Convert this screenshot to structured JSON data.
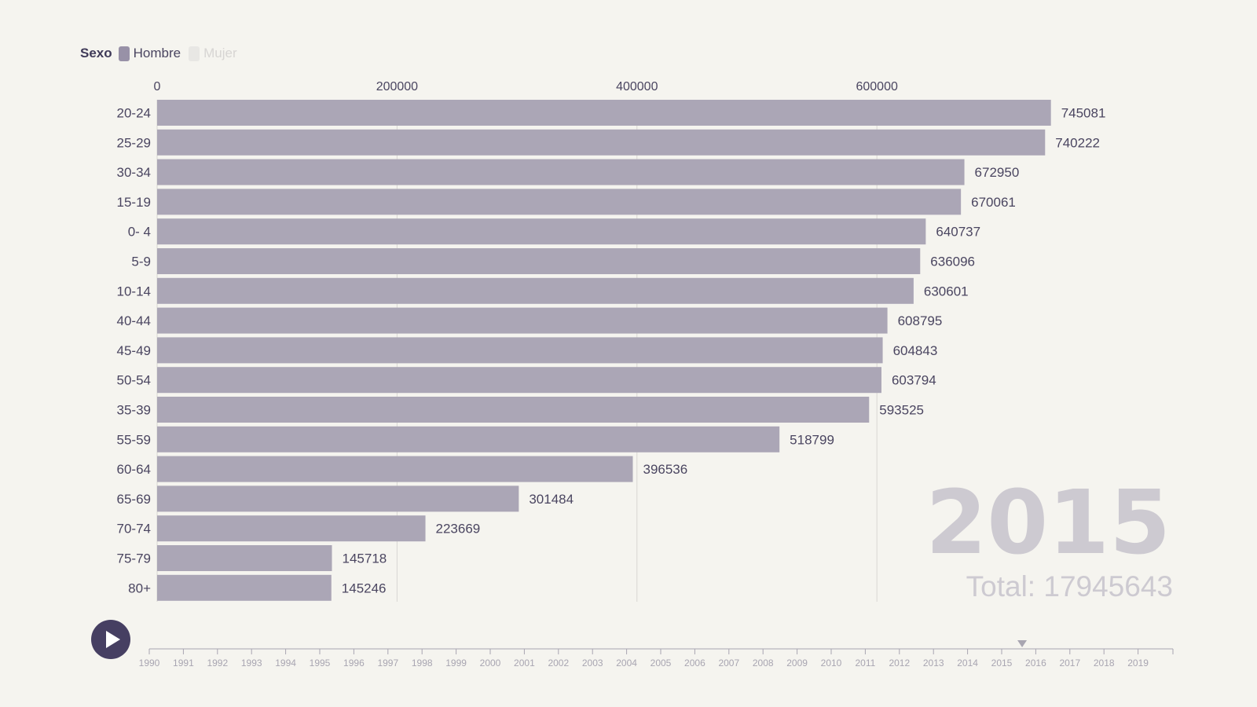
{
  "legend": {
    "title": "Sexo",
    "items": [
      {
        "label": "Hombre",
        "color": "#9891a7",
        "active": true
      },
      {
        "label": "Mujer",
        "color": "#e8e7e4",
        "active": false
      }
    ]
  },
  "big_year": "2015",
  "total_label": "Total: 17945643",
  "controls": {
    "play_icon": "play-icon"
  },
  "timeline": {
    "years": [
      "1990",
      "1991",
      "1992",
      "1993",
      "1994",
      "1995",
      "1996",
      "1997",
      "1998",
      "1999",
      "2000",
      "2001",
      "2002",
      "2003",
      "2004",
      "2005",
      "2006",
      "2007",
      "2008",
      "2009",
      "2010",
      "2011",
      "2012",
      "2013",
      "2014",
      "2015",
      "2016",
      "2017",
      "2018",
      "2019"
    ],
    "current": 2015.6
  },
  "colors": {
    "bar": "#aba6b6",
    "text": "#4a4560",
    "grid": "#d8d6d2",
    "watermark": "#cdcad1",
    "play": "#463f62",
    "timeline": "#a8a5b1"
  },
  "chart_data": {
    "type": "bar",
    "orientation": "horizontal",
    "series_name": "Hombre",
    "categories": [
      "20-24",
      "25-29",
      "30-34",
      "15-19",
      "0- 4",
      "5-9",
      "10-14",
      "40-44",
      "45-49",
      "50-54",
      "35-39",
      "55-59",
      "60-64",
      "65-69",
      "70-74",
      "75-79",
      "80+"
    ],
    "values": [
      745081,
      740222,
      672950,
      670061,
      640737,
      636096,
      630601,
      608795,
      604843,
      603794,
      593525,
      518799,
      396536,
      301484,
      223669,
      145718,
      145246
    ],
    "x_ticks": [
      0,
      200000,
      400000,
      600000
    ],
    "xlim": [
      0,
      835000
    ],
    "grid": true
  }
}
